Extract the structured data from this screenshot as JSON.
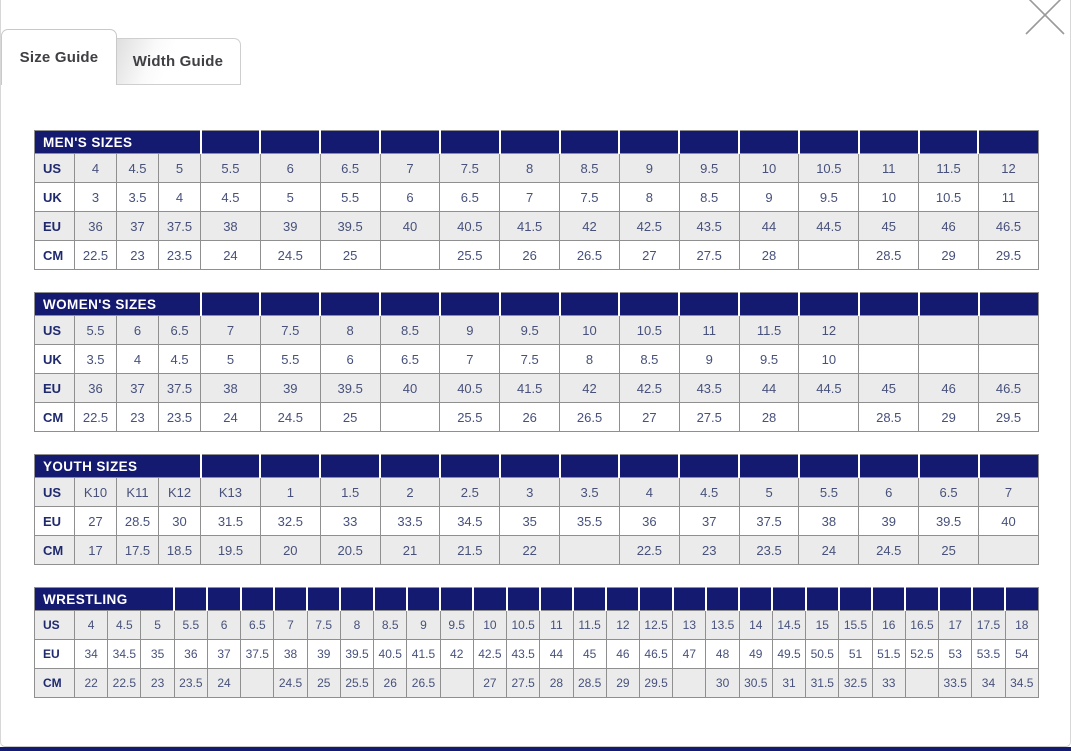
{
  "modal": {
    "tabs": [
      {
        "label": "Size Guide",
        "active": true
      },
      {
        "label": "Width Guide",
        "active": false
      }
    ],
    "close_icon": "close-x"
  },
  "colors": {
    "header_navy": "#141a70",
    "row_alt_bg": "#ebebeb",
    "cell_text": "#47517b",
    "label_text": "#1f2a6e",
    "border_gray": "#8f8f8f",
    "close_icon_gray": "#9a9a9a"
  },
  "tables": [
    {
      "title": "MEN'S SIZES",
      "rows": [
        {
          "label": "US",
          "values": [
            "4",
            "4.5",
            "5",
            "5.5",
            "6",
            "6.5",
            "7",
            "7.5",
            "8",
            "8.5",
            "9",
            "9.5",
            "10",
            "10.5",
            "11",
            "11.5",
            "12"
          ]
        },
        {
          "label": "UK",
          "values": [
            "3",
            "3.5",
            "4",
            "4.5",
            "5",
            "5.5",
            "6",
            "6.5",
            "7",
            "7.5",
            "8",
            "8.5",
            "9",
            "9.5",
            "10",
            "10.5",
            "11"
          ]
        },
        {
          "label": "EU",
          "values": [
            "36",
            "37",
            "37.5",
            "38",
            "39",
            "39.5",
            "40",
            "40.5",
            "41.5",
            "42",
            "42.5",
            "43.5",
            "44",
            "44.5",
            "45",
            "46",
            "46.5"
          ]
        },
        {
          "label": "CM",
          "values": [
            "22.5",
            "23",
            "23.5",
            "24",
            "24.5",
            "25",
            "",
            "25.5",
            "26",
            "26.5",
            "27",
            "27.5",
            "28",
            "",
            "28.5",
            "29",
            "29.5"
          ]
        }
      ]
    },
    {
      "title": "WOMEN'S SIZES",
      "rows": [
        {
          "label": "US",
          "values": [
            "5.5",
            "6",
            "6.5",
            "7",
            "7.5",
            "8",
            "8.5",
            "9",
            "9.5",
            "10",
            "10.5",
            "11",
            "11.5",
            "12",
            "",
            "",
            ""
          ]
        },
        {
          "label": "UK",
          "values": [
            "3.5",
            "4",
            "4.5",
            "5",
            "5.5",
            "6",
            "6.5",
            "7",
            "7.5",
            "8",
            "8.5",
            "9",
            "9.5",
            "10",
            "",
            "",
            ""
          ]
        },
        {
          "label": "EU",
          "values": [
            "36",
            "37",
            "37.5",
            "38",
            "39",
            "39.5",
            "40",
            "40.5",
            "41.5",
            "42",
            "42.5",
            "43.5",
            "44",
            "44.5",
            "45",
            "46",
            "46.5"
          ]
        },
        {
          "label": "CM",
          "values": [
            "22.5",
            "23",
            "23.5",
            "24",
            "24.5",
            "25",
            "",
            "25.5",
            "26",
            "26.5",
            "27",
            "27.5",
            "28",
            "",
            "28.5",
            "29",
            "29.5"
          ]
        }
      ]
    },
    {
      "title": "YOUTH SIZES",
      "rows": [
        {
          "label": "US",
          "values": [
            "K10",
            "K11",
            "K12",
            "K13",
            "1",
            "1.5",
            "2",
            "2.5",
            "3",
            "3.5",
            "4",
            "4.5",
            "5",
            "5.5",
            "6",
            "6.5",
            "7"
          ]
        },
        {
          "label": "EU",
          "values": [
            "27",
            "28.5",
            "30",
            "31.5",
            "32.5",
            "33",
            "33.5",
            "34.5",
            "35",
            "35.5",
            "36",
            "37",
            "37.5",
            "38",
            "39",
            "39.5",
            "40"
          ]
        },
        {
          "label": "CM",
          "values": [
            "17",
            "17.5",
            "18.5",
            "19.5",
            "20",
            "20.5",
            "21",
            "21.5",
            "22",
            "",
            "22.5",
            "23",
            "23.5",
            "24",
            "24.5",
            "25",
            ""
          ]
        }
      ]
    },
    {
      "title": "WRESTLING",
      "rows": [
        {
          "label": "US",
          "values": [
            "4",
            "4.5",
            "5",
            "5.5",
            "6",
            "6.5",
            "7",
            "7.5",
            "8",
            "8.5",
            "9",
            "9.5",
            "10",
            "10.5",
            "11",
            "11.5",
            "12",
            "12.5",
            "13",
            "13.5",
            "14",
            "14.5",
            "15",
            "15.5",
            "16",
            "16.5",
            "17",
            "17.5",
            "18"
          ]
        },
        {
          "label": "EU",
          "values": [
            "34",
            "34.5",
            "35",
            "36",
            "37",
            "37.5",
            "38",
            "39",
            "39.5",
            "40.5",
            "41.5",
            "42",
            "42.5",
            "43.5",
            "44",
            "45",
            "46",
            "46.5",
            "47",
            "48",
            "49",
            "49.5",
            "50.5",
            "51",
            "51.5",
            "52.5",
            "53",
            "53.5",
            "54"
          ]
        },
        {
          "label": "CM",
          "values": [
            "22",
            "22.5",
            "23",
            "23.5",
            "24",
            "",
            "24.5",
            "25",
            "25.5",
            "26",
            "26.5",
            "",
            "27",
            "27.5",
            "28",
            "28.5",
            "29",
            "29.5",
            "",
            "30",
            "30.5",
            "31",
            "31.5",
            "32.5",
            "33",
            "",
            "33.5",
            "34",
            "34.5"
          ]
        }
      ]
    }
  ]
}
